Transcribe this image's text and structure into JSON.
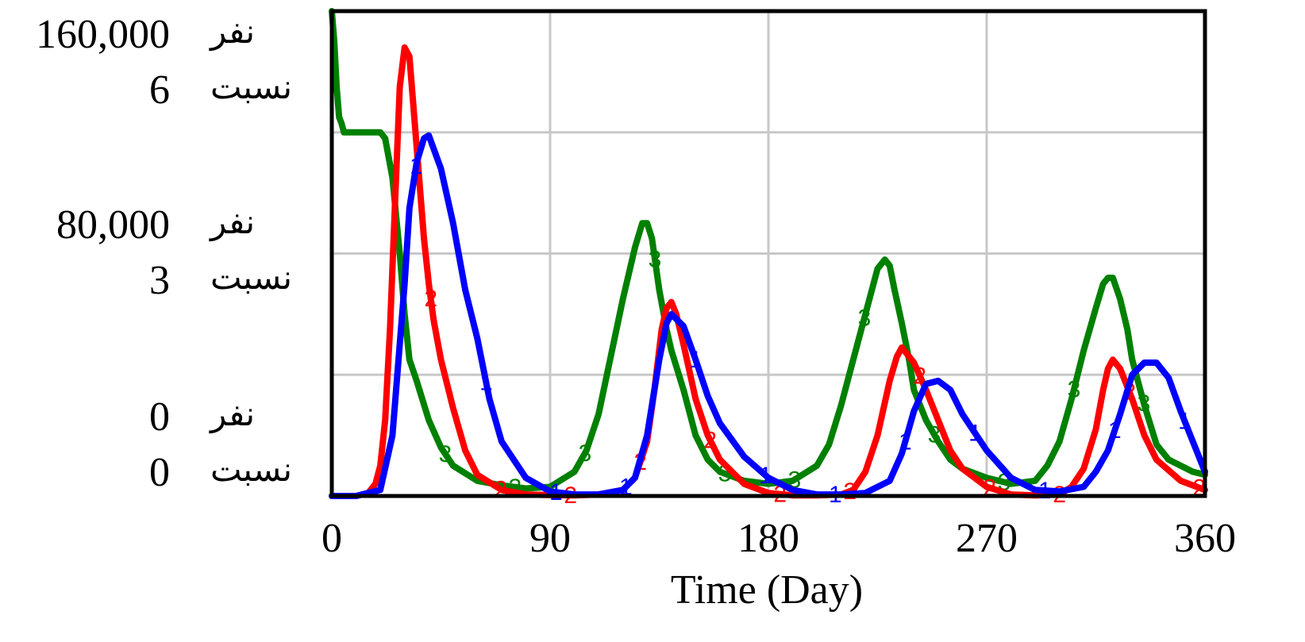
{
  "chart_data": {
    "type": "line",
    "xlabel": "Time (Day)",
    "xlim": [
      0,
      360
    ],
    "x_ticks": [
      "0",
      "90",
      "180",
      "270",
      "360"
    ],
    "grid": true,
    "y_axes": [
      {
        "unit": "نفر",
        "range": [
          0,
          160000
        ],
        "ticks": [
          {
            "value": 160000,
            "label": "160,000"
          },
          {
            "value": 80000,
            "label": "80,000"
          },
          {
            "value": 0,
            "label": "0"
          }
        ]
      },
      {
        "unit": "نسبت",
        "range": [
          0,
          6
        ],
        "ticks": [
          {
            "value": 6,
            "label": "6"
          },
          {
            "value": 3,
            "label": "3"
          },
          {
            "value": 0,
            "label": "0"
          }
        ]
      }
    ],
    "series": [
      {
        "marker": "1",
        "color": "#0000ff",
        "axis": 0,
        "x": [
          0,
          10,
          20,
          25,
          30,
          32,
          35,
          38,
          40,
          45,
          50,
          55,
          60,
          65,
          70,
          80,
          90,
          100,
          110,
          120,
          125,
          130,
          135,
          138,
          140,
          145,
          150,
          155,
          160,
          170,
          180,
          190,
          200,
          210,
          220,
          230,
          235,
          240,
          245,
          250,
          255,
          260,
          270,
          280,
          290,
          300,
          310,
          315,
          320,
          325,
          330,
          335,
          340,
          345,
          350,
          355,
          360
        ],
        "y": [
          0,
          0,
          2000,
          20000,
          70000,
          95000,
          110000,
          118000,
          119000,
          108000,
          90000,
          68000,
          52000,
          32000,
          18000,
          6000,
          1500,
          500,
          500,
          2000,
          6000,
          20000,
          45000,
          57000,
          60000,
          56000,
          45000,
          33000,
          24000,
          13000,
          6000,
          2000,
          500,
          500,
          1000,
          5000,
          14000,
          28000,
          37000,
          38000,
          35000,
          27000,
          15000,
          6000,
          2000,
          1500,
          3000,
          8000,
          15000,
          27000,
          40000,
          44000,
          44000,
          39000,
          28000,
          18000,
          8000
        ]
      },
      {
        "marker": "2",
        "color": "#ff0000",
        "axis": 0,
        "x": [
          0,
          10,
          15,
          18,
          20,
          22,
          24,
          26,
          28,
          30,
          32,
          34,
          36,
          38,
          40,
          42,
          45,
          50,
          55,
          60,
          70,
          80,
          90,
          100,
          110,
          120,
          125,
          130,
          133,
          136,
          138,
          140,
          142,
          145,
          150,
          155,
          160,
          170,
          180,
          190,
          200,
          210,
          215,
          220,
          225,
          230,
          233,
          235,
          237,
          240,
          245,
          250,
          255,
          260,
          270,
          280,
          290,
          300,
          305,
          310,
          315,
          318,
          320,
          322,
          325,
          330,
          335,
          340,
          350,
          360
        ],
        "y": [
          0,
          0,
          1000,
          4000,
          10000,
          25000,
          55000,
          95000,
          135000,
          148000,
          145000,
          125000,
          105000,
          85000,
          70000,
          58000,
          45000,
          29000,
          15000,
          7000,
          2000,
          500,
          300,
          200,
          500,
          2000,
          6000,
          18000,
          35000,
          55000,
          62000,
          64000,
          60000,
          50000,
          32000,
          20000,
          12000,
          4000,
          1000,
          200,
          200,
          500,
          2000,
          8000,
          20000,
          38000,
          46000,
          49000,
          47000,
          44000,
          35000,
          25000,
          15000,
          9000,
          3000,
          500,
          200,
          500,
          3000,
          9000,
          22000,
          35000,
          42000,
          45000,
          42000,
          32000,
          20000,
          12000,
          5000,
          2000
        ]
      },
      {
        "marker": "3",
        "color": "#008000",
        "axis": 0,
        "x": [
          0,
          1,
          2,
          3,
          4,
          5,
          6,
          8,
          10,
          15,
          20,
          22,
          25,
          28,
          30,
          32,
          35,
          40,
          45,
          50,
          60,
          70,
          80,
          90,
          100,
          105,
          110,
          115,
          120,
          125,
          128,
          130,
          132,
          135,
          138,
          140,
          145,
          150,
          155,
          160,
          170,
          180,
          190,
          200,
          205,
          210,
          215,
          220,
          225,
          228,
          230,
          232,
          235,
          238,
          240,
          245,
          250,
          255,
          260,
          270,
          280,
          290,
          295,
          300,
          305,
          310,
          315,
          318,
          320,
          322,
          325,
          328,
          330,
          335,
          340,
          345,
          350,
          355,
          360
        ],
        "y": [
          160000,
          150000,
          135000,
          125000,
          123000,
          120000,
          120000,
          120000,
          120000,
          120000,
          120000,
          118000,
          105000,
          80000,
          60000,
          45000,
          38000,
          25000,
          16000,
          10000,
          5000,
          3500,
          2500,
          3000,
          8000,
          15000,
          27000,
          46000,
          65000,
          82000,
          90000,
          90000,
          85000,
          68000,
          55000,
          48000,
          35000,
          20000,
          12000,
          8000,
          5000,
          4000,
          5000,
          10000,
          17000,
          30000,
          45000,
          60000,
          75000,
          78000,
          76000,
          68000,
          57000,
          45000,
          35000,
          25000,
          18000,
          12000,
          9000,
          6000,
          4000,
          5000,
          10000,
          18000,
          32000,
          48000,
          62000,
          70000,
          72000,
          72000,
          65000,
          55000,
          45000,
          30000,
          17000,
          12000,
          10000,
          8000,
          7000
        ]
      }
    ]
  }
}
